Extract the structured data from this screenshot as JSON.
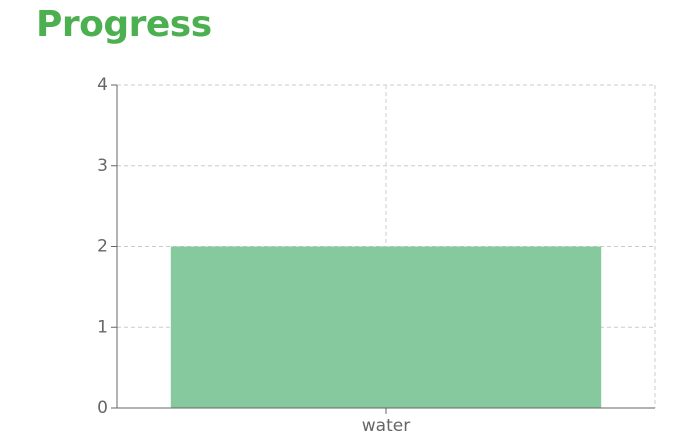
{
  "page": {
    "title": "Progress"
  },
  "colors": {
    "title": "#4caf50",
    "bar": "#86c99e",
    "grid": "#cccccc",
    "axis": "#666666",
    "tick_text": "#666666"
  },
  "chart_data": {
    "type": "bar",
    "categories": [
      "water"
    ],
    "values": [
      2
    ],
    "title": "",
    "xlabel": "",
    "ylabel": "",
    "ylim": [
      0,
      4
    ],
    "yticks": [
      0,
      1,
      2,
      3,
      4
    ],
    "grid": true,
    "legend": "none"
  }
}
